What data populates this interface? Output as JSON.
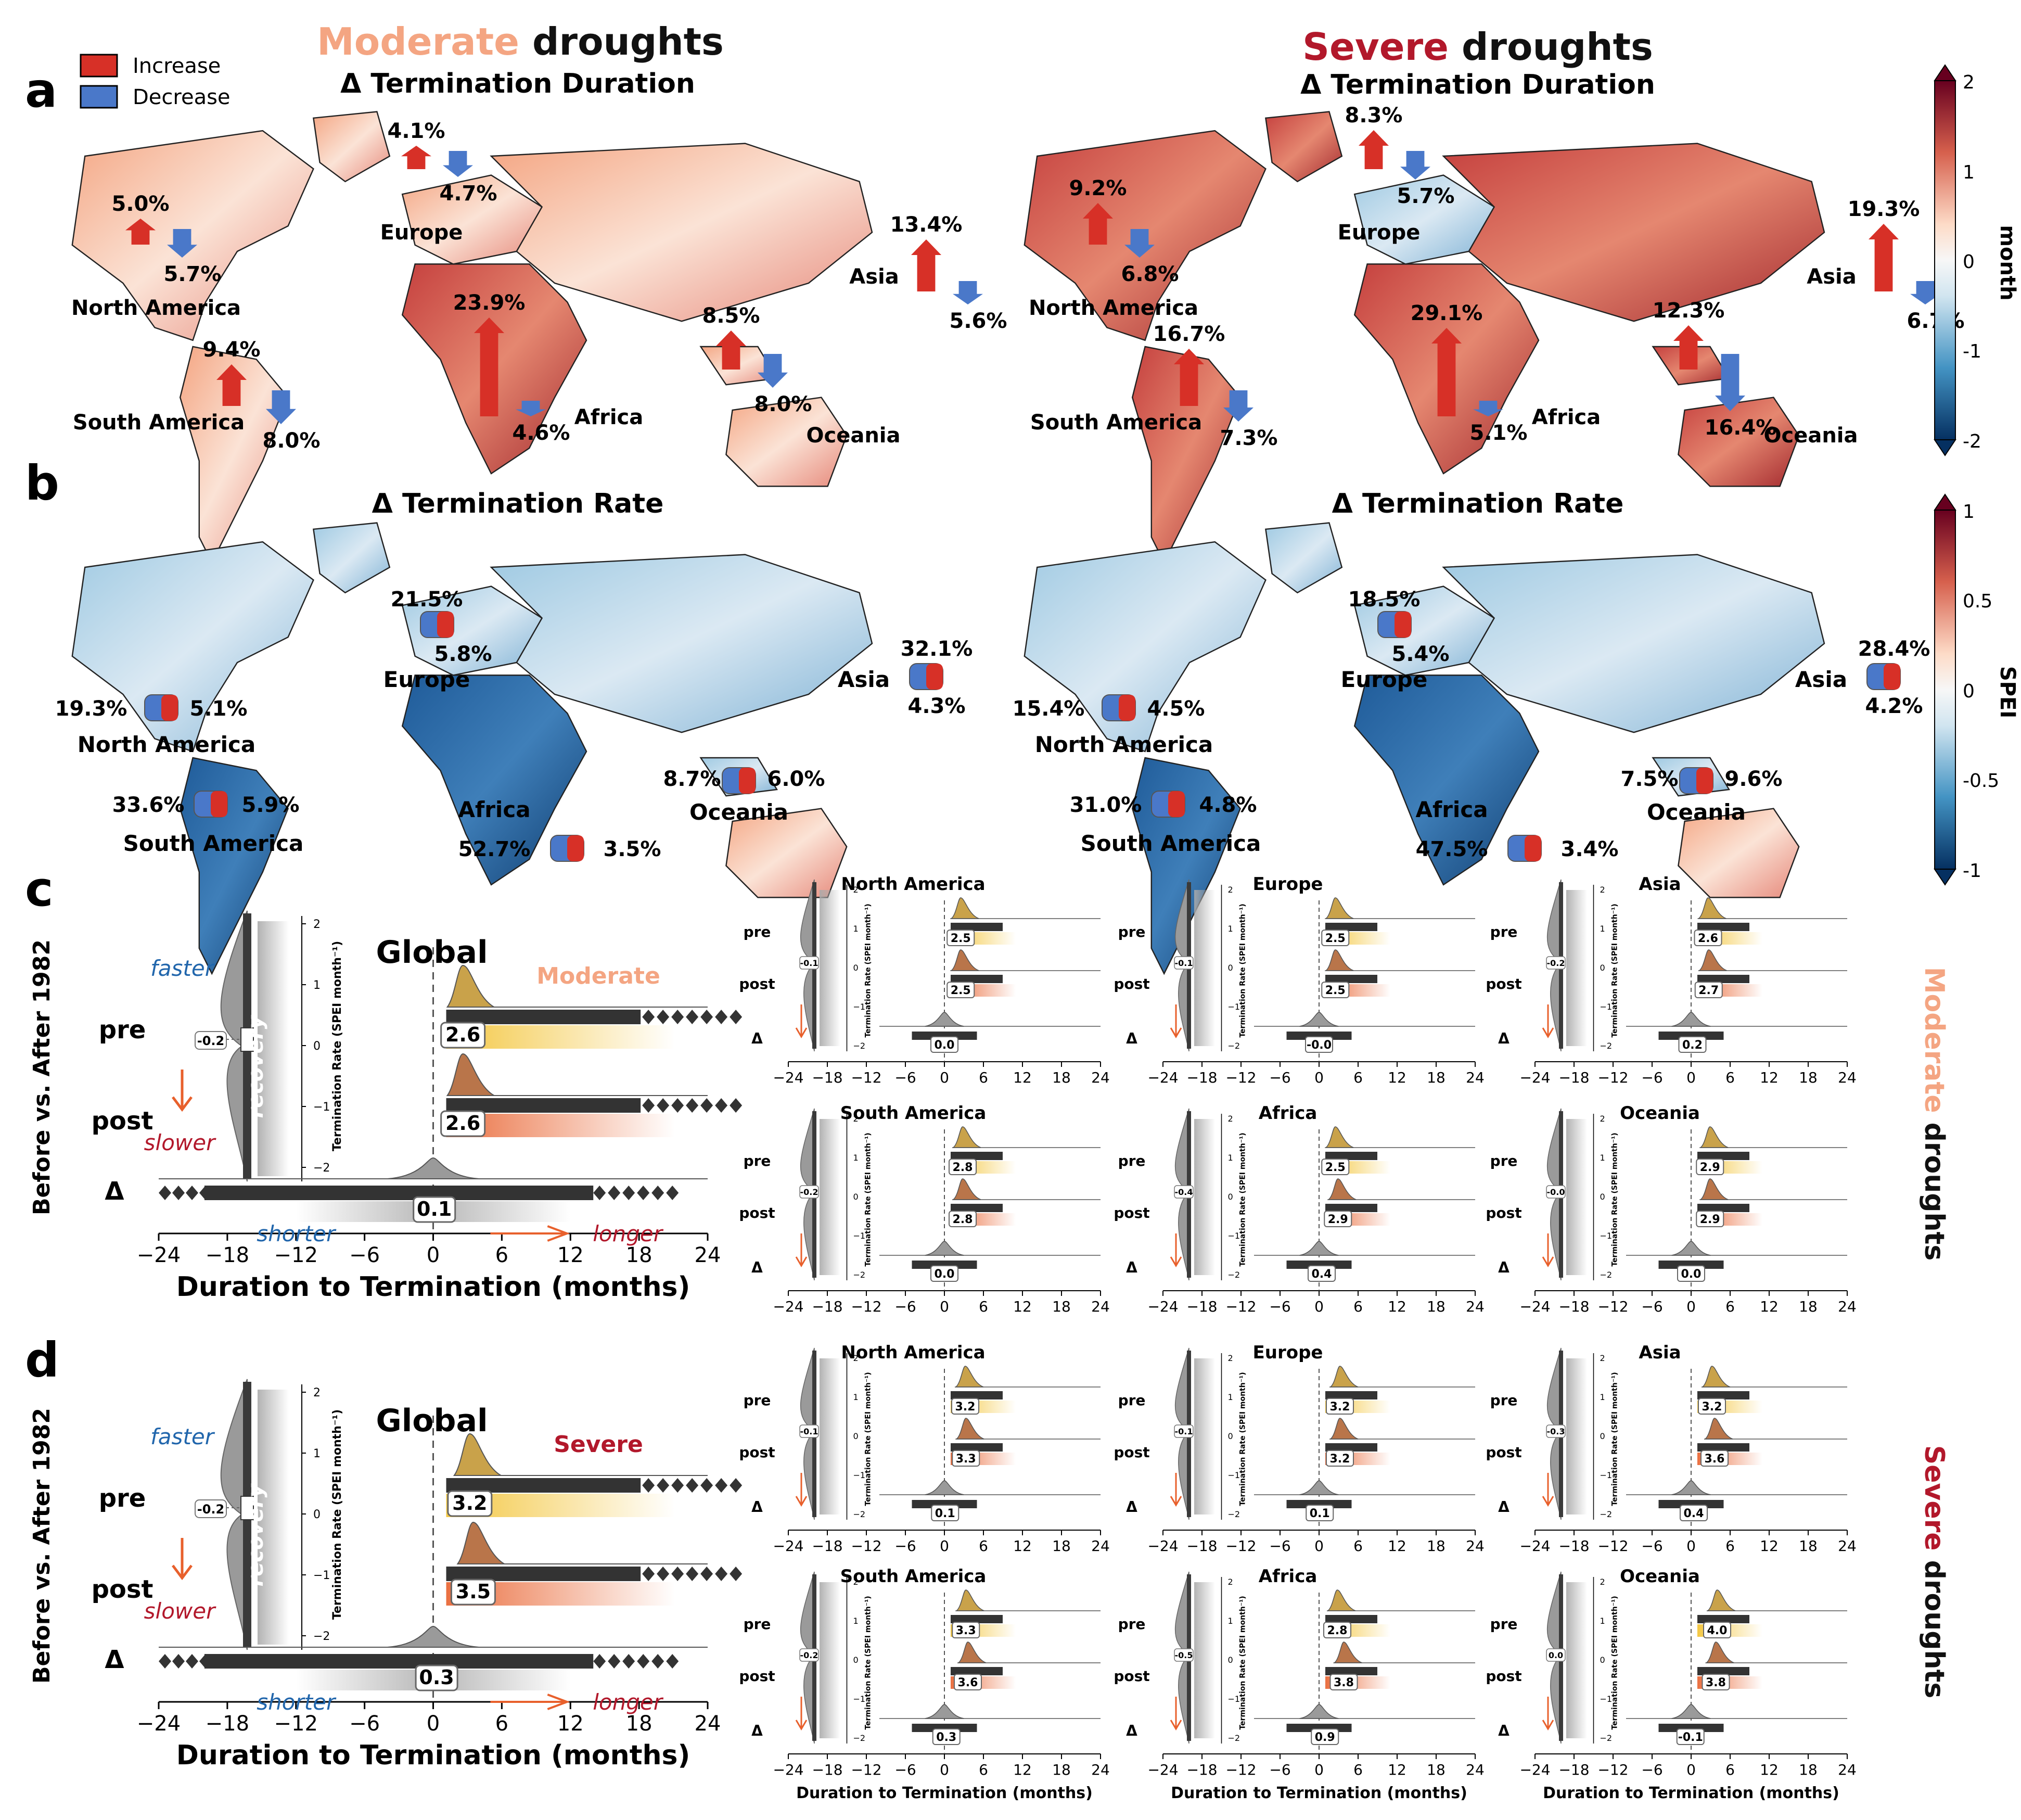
{
  "colors": {
    "increase": "#d73027",
    "decrease": "#4575b4",
    "moderate": "#f4a582",
    "severe": "#b2182b",
    "pre_ridge": "#c9a24a",
    "post_ridge": "#b9754a",
    "orange_arrow": "#e8602c",
    "blue_text": "#2166ac",
    "red_text": "#b2182b",
    "dark": "#333333",
    "gray": "#8c8c8c"
  },
  "panel_labels": [
    "a",
    "b",
    "c",
    "d"
  ],
  "legend": {
    "increase": "Increase",
    "decrease": "Decrease"
  },
  "titles": {
    "moderate_word": "Moderate",
    "severe_word": "Severe",
    "droughts": " droughts",
    "delta_duration": "Δ Termination Duration",
    "delta_rate": "Δ Termination Rate"
  },
  "colorbar_a": {
    "label": "month",
    "ticks": [
      "2",
      "1",
      "0",
      "-1",
      "-2"
    ]
  },
  "colorbar_b": {
    "label": "SPEI",
    "ticks": [
      "1",
      "0.5",
      "0",
      "-0.5",
      "-1"
    ]
  },
  "duration_moderate": [
    {
      "region": "North America",
      "inc": "5.0%",
      "dec": "5.7%"
    },
    {
      "region": "Europe",
      "inc": "4.1%",
      "dec": "4.7%"
    },
    {
      "region": "Asia",
      "inc": "13.4%",
      "dec": "5.6%"
    },
    {
      "region": "South America",
      "inc": "9.4%",
      "dec": "8.0%"
    },
    {
      "region": "Africa",
      "inc": "23.9%",
      "dec": "4.6%"
    },
    {
      "region": "Oceania",
      "inc": "8.5%",
      "dec": "8.0%"
    }
  ],
  "duration_severe": [
    {
      "region": "North America",
      "inc": "9.2%",
      "dec": "6.8%"
    },
    {
      "region": "Europe",
      "inc": "8.3%",
      "dec": "5.7%"
    },
    {
      "region": "Asia",
      "inc": "19.3%",
      "dec": "6.7%"
    },
    {
      "region": "South America",
      "inc": "16.7%",
      "dec": "7.3%"
    },
    {
      "region": "Africa",
      "inc": "29.1%",
      "dec": "5.1%"
    },
    {
      "region": "Oceania",
      "inc": "12.3%",
      "dec": "16.4%"
    }
  ],
  "rate_moderate": [
    {
      "region": "North America",
      "dec": "19.3%",
      "inc": "5.1%"
    },
    {
      "region": "Europe",
      "dec": "21.5%",
      "inc": "5.8%"
    },
    {
      "region": "Asia",
      "dec": "32.1%",
      "inc": "4.3%"
    },
    {
      "region": "South America",
      "dec": "33.6%",
      "inc": "5.9%"
    },
    {
      "region": "Africa",
      "dec": "52.7%",
      "inc": "3.5%"
    },
    {
      "region": "Oceania",
      "dec": "8.7%",
      "inc": "6.0%"
    }
  ],
  "rate_severe": [
    {
      "region": "North America",
      "dec": "15.4%",
      "inc": "4.5%"
    },
    {
      "region": "Europe",
      "dec": "18.5%",
      "inc": "5.4%"
    },
    {
      "region": "Asia",
      "dec": "28.4%",
      "inc": "4.2%"
    },
    {
      "region": "South America",
      "dec": "31.0%",
      "inc": "4.8%"
    },
    {
      "region": "Africa",
      "dec": "47.5%",
      "inc": "3.4%"
    },
    {
      "region": "Oceania",
      "dec": "7.5%",
      "inc": "9.6%"
    }
  ],
  "global_labels": {
    "title": "Global",
    "ylabel": "Before vs. After 1982",
    "pre": "pre",
    "post": "post",
    "delta": "Δ",
    "faster": "faster",
    "slower": "slower",
    "recovery": "recovery",
    "shorter": "shorter",
    "longer": "longer",
    "rate_axis": "Termination Rate (SPEI month⁻¹)",
    "xlabel": "Duration to Termination (months)",
    "side_moderate": "Moderate",
    "side_severe": "Severe"
  },
  "chart_data": [
    {
      "type": "raincloud",
      "panel": "c",
      "region": "Global",
      "intensity": "Moderate",
      "medians": {
        "pre": 2.6,
        "post": 2.6,
        "delta": 0.1
      },
      "rate_median": -0.2,
      "xlim": [
        -24,
        24
      ],
      "rate_ylim": [
        -2,
        2
      ]
    },
    {
      "type": "raincloud",
      "panel": "d",
      "region": "Global",
      "intensity": "Severe",
      "medians": {
        "pre": 3.2,
        "post": 3.5,
        "delta": 0.3
      },
      "rate_median": -0.2,
      "xlim": [
        -24,
        24
      ],
      "rate_ylim": [
        -2,
        2
      ]
    }
  ],
  "regional_moderate": [
    {
      "region": "North America",
      "pre": "2.5",
      "post": "2.5",
      "delta": "0.0",
      "rate": "-0.1"
    },
    {
      "region": "Europe",
      "pre": "2.5",
      "post": "2.5",
      "delta": "-0.0",
      "rate": "-0.1"
    },
    {
      "region": "Asia",
      "pre": "2.6",
      "post": "2.7",
      "delta": "0.2",
      "rate": "-0.2"
    },
    {
      "region": "South America",
      "pre": "2.8",
      "post": "2.8",
      "delta": "0.0",
      "rate": "-0.2"
    },
    {
      "region": "Africa",
      "pre": "2.5",
      "post": "2.9",
      "delta": "0.4",
      "rate": "-0.4"
    },
    {
      "region": "Oceania",
      "pre": "2.9",
      "post": "2.9",
      "delta": "0.0",
      "rate": "-0.0"
    }
  ],
  "regional_severe": [
    {
      "region": "North America",
      "pre": "3.2",
      "post": "3.3",
      "delta": "0.1",
      "rate": "-0.1"
    },
    {
      "region": "Europe",
      "pre": "3.2",
      "post": "3.2",
      "delta": "0.1",
      "rate": "-0.1"
    },
    {
      "region": "Asia",
      "pre": "3.2",
      "post": "3.6",
      "delta": "0.4",
      "rate": "-0.3"
    },
    {
      "region": "South America",
      "pre": "3.3",
      "post": "3.6",
      "delta": "0.3",
      "rate": "-0.2"
    },
    {
      "region": "Africa",
      "pre": "2.8",
      "post": "3.8",
      "delta": "0.9",
      "rate": "-0.5"
    },
    {
      "region": "Oceania",
      "pre": "4.0",
      "post": "3.8",
      "delta": "-0.1",
      "rate": "0.0"
    }
  ],
  "x_ticks": [
    "−24",
    "−18",
    "−12",
    "−6",
    "0",
    "6",
    "12",
    "18",
    "24"
  ],
  "rate_ticks": [
    "2",
    "1",
    "0",
    "−1",
    "−2"
  ]
}
